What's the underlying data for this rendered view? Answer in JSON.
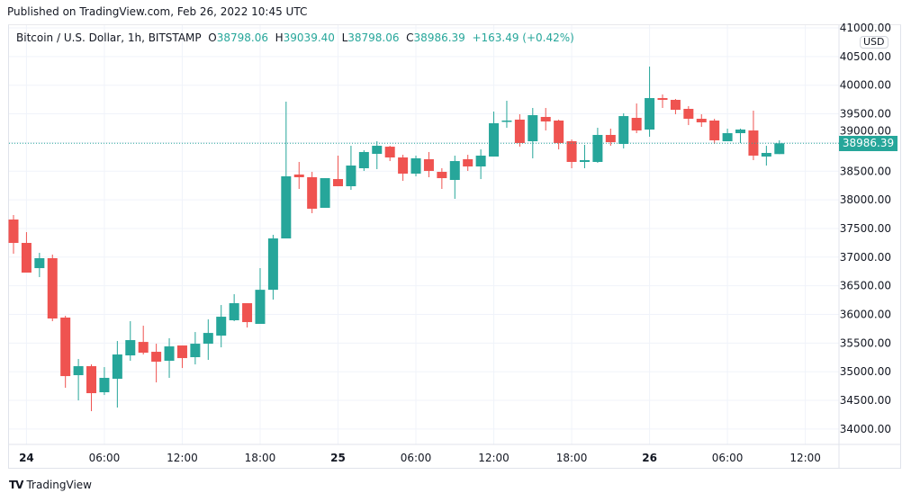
{
  "published": "Published on TradingView.com, Feb 26, 2022 10:45 UTC",
  "legend": {
    "symbol": "Bitcoin / U.S. Dollar, 1h, BITSTAMP",
    "o_label": "O",
    "o": "38798.06",
    "h_label": "H",
    "h": "39039.40",
    "l_label": "L",
    "l": "38798.06",
    "c_label": "C",
    "c": "38986.39",
    "change": "+163.49 (+0.42%)"
  },
  "currency": "USD",
  "current_price": "38986.39",
  "brand": "TradingView",
  "colors": {
    "up": "#26a69a",
    "down": "#ef5350",
    "grid": "#f0f3fa"
  },
  "chart_data": {
    "type": "candlestick",
    "title": "Bitcoin / U.S. Dollar, 1h, BITSTAMP",
    "ylim": [
      33800,
      41050
    ],
    "y_ticks": [
      "34000.00",
      "34500.00",
      "35000.00",
      "35500.00",
      "36000.00",
      "36500.00",
      "37000.00",
      "37500.00",
      "38000.00",
      "38500.00",
      "39000.00",
      "39500.00",
      "40000.00",
      "40500.00",
      "41000.00"
    ],
    "x_ticks": [
      {
        "label": "24",
        "hour": 1,
        "bold": true
      },
      {
        "label": "06:00",
        "hour": 7
      },
      {
        "label": "12:00",
        "hour": 13
      },
      {
        "label": "18:00",
        "hour": 19
      },
      {
        "label": "25",
        "hour": 25,
        "bold": true
      },
      {
        "label": "06:00",
        "hour": 31
      },
      {
        "label": "12:00",
        "hour": 37
      },
      {
        "label": "18:00",
        "hour": 43
      },
      {
        "label": "26",
        "hour": 49,
        "bold": true
      },
      {
        "label": "06:00",
        "hour": 55
      },
      {
        "label": "12:00",
        "hour": 61
      }
    ],
    "x_hour_range": [
      -0.4,
      63.6
    ],
    "ohlc": [
      [
        37656,
        37734,
        37059,
        37248
      ],
      [
        37248,
        37436,
        36730,
        36730
      ],
      [
        36808,
        37075,
        36651,
        36981
      ],
      [
        36981,
        37044,
        35882,
        35929
      ],
      [
        35945,
        35976,
        34720,
        34924
      ],
      [
        34940,
        35222,
        34500,
        35097
      ],
      [
        35097,
        35128,
        34312,
        34626
      ],
      [
        34642,
        35081,
        34594,
        34893
      ],
      [
        34877,
        35536,
        34375,
        35301
      ],
      [
        35285,
        35882,
        35191,
        35552
      ],
      [
        35520,
        35803,
        35301,
        35332
      ],
      [
        35348,
        35489,
        34814,
        35175
      ],
      [
        35191,
        35584,
        34893,
        35442
      ],
      [
        35458,
        35458,
        35065,
        35238
      ],
      [
        35254,
        35693,
        35128,
        35489
      ],
      [
        35489,
        35913,
        35207,
        35677
      ],
      [
        35630,
        36164,
        35426,
        35960
      ],
      [
        35898,
        36353,
        35882,
        36196
      ],
      [
        36196,
        36196,
        35772,
        35866
      ],
      [
        35835,
        36808,
        35835,
        36430
      ],
      [
        36430,
        37389,
        36259,
        37326
      ],
      [
        37326,
        39713,
        37326,
        38410
      ],
      [
        38441,
        38661,
        38190,
        38394
      ],
      [
        38394,
        38488,
        37766,
        37844
      ],
      [
        37860,
        38378,
        37860,
        38378
      ],
      [
        38362,
        38771,
        38237,
        38237
      ],
      [
        38237,
        38943,
        38174,
        38598
      ],
      [
        38551,
        38865,
        38504,
        38834
      ],
      [
        38802,
        39022,
        38535,
        38943
      ],
      [
        38927,
        38943,
        38676,
        38739
      ],
      [
        38739,
        38786,
        38331,
        38457
      ],
      [
        38457,
        38771,
        38410,
        38724
      ],
      [
        38708,
        38834,
        38394,
        38504
      ],
      [
        38488,
        38551,
        38190,
        38378
      ],
      [
        38347,
        38771,
        38017,
        38676
      ],
      [
        38708,
        38786,
        38504,
        38582
      ],
      [
        38582,
        38880,
        38362,
        38771
      ],
      [
        38755,
        39540,
        38755,
        39336
      ],
      [
        39360,
        39728,
        39257,
        39383
      ],
      [
        39399,
        39493,
        38928,
        38990
      ],
      [
        39022,
        39603,
        38724,
        39477
      ],
      [
        39446,
        39603,
        39210,
        39367
      ],
      [
        39383,
        39399,
        38880,
        38990
      ],
      [
        39022,
        39053,
        38551,
        38661
      ],
      [
        38661,
        38959,
        38551,
        38692
      ],
      [
        38661,
        39257,
        38645,
        39132
      ],
      [
        39132,
        39242,
        38943,
        39006
      ],
      [
        38975,
        39509,
        38896,
        39461
      ],
      [
        39430,
        39681,
        39163,
        39210
      ],
      [
        39226,
        40325,
        39100,
        39775
      ],
      [
        39775,
        39838,
        39603,
        39744
      ],
      [
        39744,
        39760,
        39493,
        39571
      ],
      [
        39587,
        39634,
        39304,
        39414
      ],
      [
        39414,
        39493,
        39273,
        39352
      ],
      [
        39383,
        39414,
        38975,
        39038
      ],
      [
        39022,
        39242,
        39022,
        39163
      ],
      [
        39163,
        39242,
        38990,
        39226
      ],
      [
        39210,
        39556,
        38692,
        38771
      ],
      [
        38755,
        38943,
        38598,
        38818
      ],
      [
        38798.06,
        39039.4,
        38798.06,
        38986.39
      ]
    ],
    "ohlc_fields": [
      "open",
      "high",
      "low",
      "close"
    ],
    "first_candle": "Feb 23 23:00",
    "last_price_line": 38986.39
  }
}
